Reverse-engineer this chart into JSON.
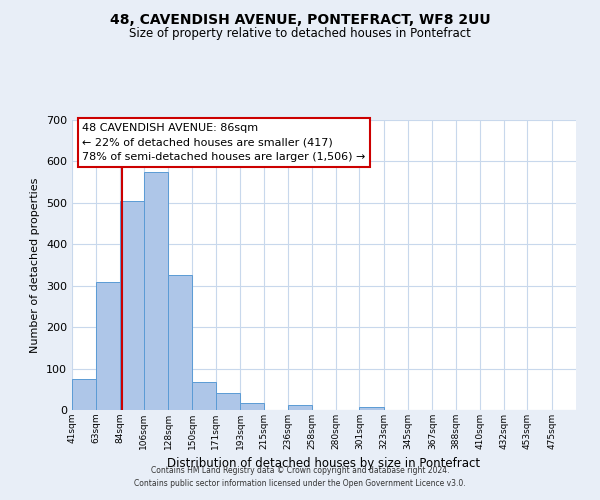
{
  "title": "48, CAVENDISH AVENUE, PONTEFRACT, WF8 2UU",
  "subtitle": "Size of property relative to detached houses in Pontefract",
  "xlabel": "Distribution of detached houses by size in Pontefract",
  "ylabel": "Number of detached properties",
  "bin_labels": [
    "41sqm",
    "63sqm",
    "84sqm",
    "106sqm",
    "128sqm",
    "150sqm",
    "171sqm",
    "193sqm",
    "215sqm",
    "236sqm",
    "258sqm",
    "280sqm",
    "301sqm",
    "323sqm",
    "345sqm",
    "367sqm",
    "388sqm",
    "410sqm",
    "432sqm",
    "453sqm",
    "475sqm"
  ],
  "bin_edges": [
    41,
    63,
    84,
    106,
    128,
    150,
    171,
    193,
    215,
    236,
    258,
    280,
    301,
    323,
    345,
    367,
    388,
    410,
    432,
    453,
    475
  ],
  "bar_heights": [
    75,
    310,
    505,
    575,
    327,
    68,
    40,
    18,
    0,
    12,
    0,
    0,
    8,
    0,
    0,
    0,
    0,
    0,
    0,
    0,
    0
  ],
  "bar_color": "#aec6e8",
  "bar_edge_color": "#5b9bd5",
  "property_line_x": 86,
  "property_line_color": "#cc0000",
  "ylim": [
    0,
    700
  ],
  "yticks": [
    0,
    100,
    200,
    300,
    400,
    500,
    600,
    700
  ],
  "annotation_title": "48 CAVENDISH AVENUE: 86sqm",
  "annotation_line1": "← 22% of detached houses are smaller (417)",
  "annotation_line2": "78% of semi-detached houses are larger (1,506) →",
  "annotation_box_color": "#cc0000",
  "footer_line1": "Contains HM Land Registry data © Crown copyright and database right 2024.",
  "footer_line2": "Contains public sector information licensed under the Open Government Licence v3.0.",
  "background_color": "#e8eef7",
  "plot_background": "#ffffff",
  "grid_color": "#c8d8ec"
}
